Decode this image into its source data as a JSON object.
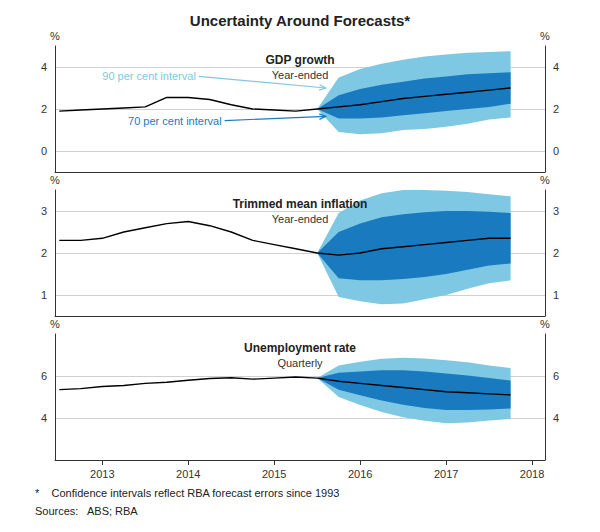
{
  "chart_data": {
    "type": "fan",
    "title": "Uncertainty Around Forecasts*",
    "footnotes": [
      "*    Confidence intervals reflect RBA forecast errors since 1993",
      "Sources:   ABS; RBA"
    ],
    "xlim": [
      2012.45,
      2018.15
    ],
    "xticks": [
      2013,
      2014,
      2015,
      2016,
      2017,
      2018
    ],
    "grid": true,
    "panels": [
      {
        "title": "GDP growth",
        "subtitle": "Year-ended",
        "ylabel": "%",
        "ylim": [
          -1,
          5
        ],
        "yticks": [
          0,
          2,
          4
        ],
        "bands": [
          {
            "color": "#7ec8e3",
            "x": [
              2015.5,
              2015.75,
              2016.0,
              2016.25,
              2016.5,
              2016.75,
              2017.0,
              2017.25,
              2017.5,
              2017.75
            ],
            "lower": [
              2.0,
              0.9,
              0.8,
              0.85,
              1.0,
              1.05,
              1.15,
              1.3,
              1.5,
              1.6
            ],
            "upper": [
              2.0,
              3.5,
              3.9,
              4.15,
              4.35,
              4.5,
              4.6,
              4.68,
              4.72,
              4.75
            ]
          },
          {
            "color": "#1a7abf",
            "x": [
              2015.5,
              2015.75,
              2016.0,
              2016.25,
              2016.5,
              2016.75,
              2017.0,
              2017.25,
              2017.5,
              2017.75
            ],
            "lower": [
              2.0,
              1.55,
              1.55,
              1.6,
              1.7,
              1.8,
              1.9,
              2.0,
              2.1,
              2.25
            ],
            "upper": [
              2.0,
              2.65,
              2.95,
              3.15,
              3.3,
              3.45,
              3.55,
              3.65,
              3.7,
              3.75
            ]
          }
        ],
        "line": {
          "color": "#000000",
          "x": [
            2012.5,
            2012.75,
            2013.0,
            2013.25,
            2013.5,
            2013.75,
            2014.0,
            2014.25,
            2014.5,
            2014.75,
            2015.0,
            2015.25,
            2015.5,
            2015.75,
            2016.0,
            2016.25,
            2016.5,
            2016.75,
            2017.0,
            2017.25,
            2017.5,
            2017.75
          ],
          "values": [
            1.9,
            1.95,
            2.0,
            2.05,
            2.1,
            2.55,
            2.55,
            2.45,
            2.2,
            2.0,
            1.95,
            1.9,
            2.0,
            2.1,
            2.2,
            2.35,
            2.5,
            2.6,
            2.7,
            2.8,
            2.9,
            3.0
          ]
        },
        "annotations": [
          {
            "text": "90 per cent interval",
            "color": "#7ec8e3",
            "x": 2013.0,
            "y": 3.55,
            "arrow_x": 2015.6,
            "arrow_y": 3.0
          },
          {
            "text": "70 per cent interval",
            "color": "#1a7abf",
            "x": 2013.3,
            "y": 1.45,
            "arrow_x": 2015.6,
            "arrow_y": 1.65
          }
        ]
      },
      {
        "title": "Trimmed mean inflation",
        "subtitle": "Year-ended",
        "ylabel": "%",
        "ylim": [
          0.5,
          3.5
        ],
        "yticks": [
          1,
          2,
          3
        ],
        "bands": [
          {
            "color": "#7ec8e3",
            "x": [
              2015.5,
              2015.75,
              2016.0,
              2016.25,
              2016.5,
              2016.75,
              2017.0,
              2017.25,
              2017.5,
              2017.75
            ],
            "lower": [
              2.0,
              0.95,
              0.85,
              0.78,
              0.8,
              0.9,
              1.0,
              1.15,
              1.28,
              1.35
            ],
            "upper": [
              2.0,
              2.95,
              3.25,
              3.42,
              3.5,
              3.5,
              3.48,
              3.45,
              3.4,
              3.35
            ]
          },
          {
            "color": "#1a7abf",
            "x": [
              2015.5,
              2015.75,
              2016.0,
              2016.25,
              2016.5,
              2016.75,
              2017.0,
              2017.25,
              2017.5,
              2017.75
            ],
            "lower": [
              2.0,
              1.4,
              1.35,
              1.35,
              1.38,
              1.43,
              1.5,
              1.6,
              1.7,
              1.75
            ],
            "upper": [
              2.0,
              2.5,
              2.7,
              2.85,
              2.92,
              2.97,
              3.0,
              3.0,
              2.98,
              2.95
            ]
          }
        ],
        "line": {
          "color": "#000000",
          "x": [
            2012.5,
            2012.75,
            2013.0,
            2013.25,
            2013.5,
            2013.75,
            2014.0,
            2014.25,
            2014.5,
            2014.75,
            2015.0,
            2015.25,
            2015.5,
            2015.75,
            2016.0,
            2016.25,
            2016.5,
            2016.75,
            2017.0,
            2017.25,
            2017.5,
            2017.75
          ],
          "values": [
            2.3,
            2.3,
            2.35,
            2.5,
            2.6,
            2.7,
            2.75,
            2.65,
            2.5,
            2.3,
            2.2,
            2.1,
            2.0,
            1.95,
            2.0,
            2.1,
            2.15,
            2.2,
            2.25,
            2.3,
            2.35,
            2.35
          ]
        }
      },
      {
        "title": "Unemployment rate",
        "subtitle": "Quarterly",
        "ylabel": "%",
        "ylim": [
          2,
          8
        ],
        "yticks": [
          4,
          6
        ],
        "bands": [
          {
            "color": "#7ec8e3",
            "x": [
              2015.5,
              2015.75,
              2016.0,
              2016.25,
              2016.5,
              2016.75,
              2017.0,
              2017.25,
              2017.5,
              2017.75
            ],
            "lower": [
              5.9,
              5.0,
              4.62,
              4.28,
              4.03,
              3.87,
              3.75,
              3.78,
              3.88,
              3.95
            ],
            "upper": [
              5.9,
              6.5,
              6.68,
              6.82,
              6.87,
              6.83,
              6.75,
              6.65,
              6.5,
              6.38
            ]
          },
          {
            "color": "#1a7abf",
            "x": [
              2015.5,
              2015.75,
              2016.0,
              2016.25,
              2016.5,
              2016.75,
              2017.0,
              2017.25,
              2017.5,
              2017.75
            ],
            "lower": [
              5.9,
              5.35,
              5.08,
              4.83,
              4.63,
              4.48,
              4.38,
              4.38,
              4.4,
              4.45
            ],
            "upper": [
              5.9,
              6.15,
              6.22,
              6.27,
              6.27,
              6.22,
              6.12,
              6.02,
              5.9,
              5.78
            ]
          }
        ],
        "line": {
          "color": "#000000",
          "x": [
            2012.5,
            2012.75,
            2013.0,
            2013.25,
            2013.5,
            2013.75,
            2014.0,
            2014.25,
            2014.5,
            2014.75,
            2015.0,
            2015.25,
            2015.5,
            2015.75,
            2016.0,
            2016.25,
            2016.5,
            2016.75,
            2017.0,
            2017.25,
            2017.5,
            2017.75
          ],
          "values": [
            5.35,
            5.4,
            5.5,
            5.55,
            5.65,
            5.7,
            5.8,
            5.88,
            5.92,
            5.85,
            5.9,
            5.95,
            5.9,
            5.75,
            5.65,
            5.55,
            5.45,
            5.35,
            5.25,
            5.2,
            5.15,
            5.1
          ]
        }
      }
    ]
  }
}
